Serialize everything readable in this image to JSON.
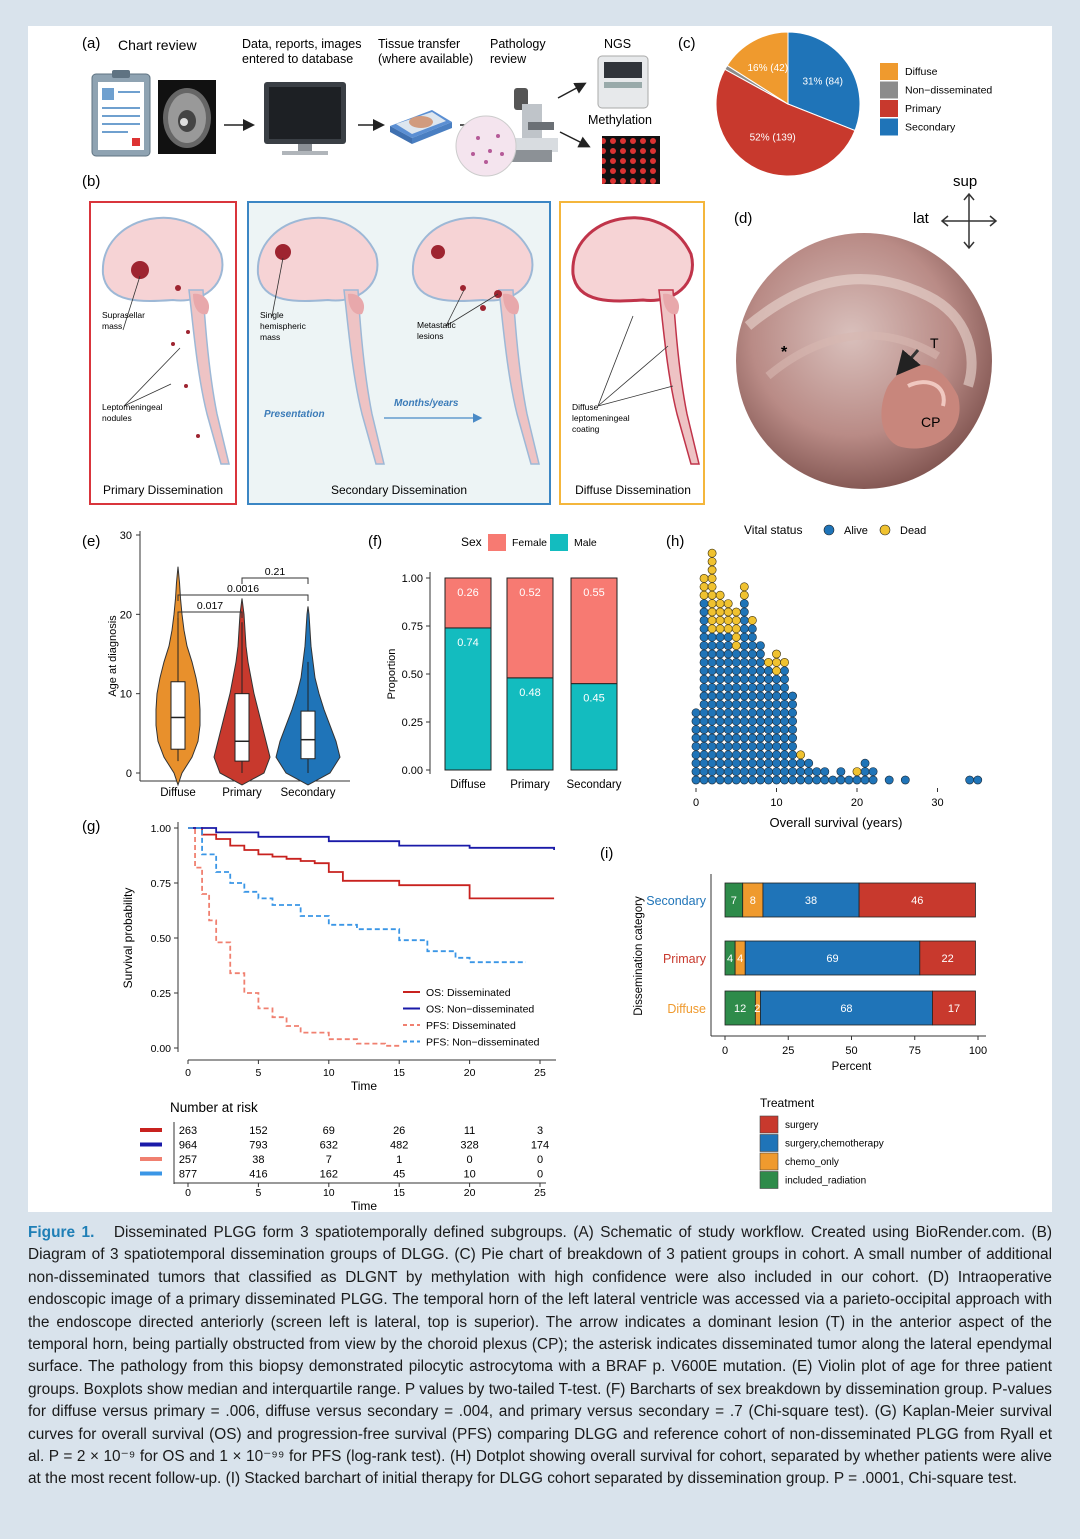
{
  "panel_a": {
    "label": "(a)",
    "steps": [
      "Chart review",
      "Data, reports, images\nentered to database",
      "Tissue transfer\n(where available)",
      "Pathology\nreview",
      "NGS",
      "Methylation"
    ]
  },
  "panel_b": {
    "label": "(b)",
    "boxes": [
      {
        "title": "Primary Dissemination",
        "color": "#d9353c",
        "labels": [
          "Suprasellar\nmass",
          "Leptomeningeal\nnodules"
        ]
      },
      {
        "title": "Secondary Dissemination",
        "color": "#3b86c4",
        "labels": [
          "Single\nhemispheric\nmass",
          "Metastatic\nlesions",
          "Presentation",
          "Months/years"
        ]
      },
      {
        "title": "Diffuse Dissemination",
        "color": "#f4b63c",
        "labels": [
          "Diffuse\nleptomeningeal\ncoating"
        ]
      }
    ]
  },
  "panel_d": {
    "label": "(d)",
    "orient_up": "sup",
    "orient_side": "lat",
    "marks": [
      "*",
      "T",
      "CP"
    ]
  },
  "chart_data": [
    {
      "id": "c",
      "type": "pie",
      "title": "",
      "categories": [
        "Diffuse",
        "Non-disseminated",
        "Primary",
        "Secondary"
      ],
      "percent": [
        16,
        1,
        52,
        31
      ],
      "counts": [
        42,
        3,
        139,
        84
      ],
      "slice_labels": [
        "16% (42)",
        "",
        "52% (139)",
        "31% (84)"
      ],
      "colors": [
        "#ef9a2e",
        "#8c8c8c",
        "#c8392d",
        "#1f74b8"
      ],
      "legend_labels": [
        "Diffuse",
        "Non−disseminated",
        "Primary",
        "Secondary"
      ],
      "legend": "right"
    },
    {
      "id": "e",
      "type": "violin",
      "categories": [
        "Diffuse",
        "Primary",
        "Secondary"
      ],
      "ylabel": "Age at diagnosis",
      "ylim": [
        0,
        30
      ],
      "yticks": [
        "0",
        "10",
        "20",
        "30"
      ],
      "medians": [
        7,
        4,
        4.2
      ],
      "q1": [
        3,
        1.5,
        1.8
      ],
      "q3": [
        11.5,
        10,
        7.8
      ],
      "whisker_low": [
        1.5,
        0,
        0
      ],
      "whisker_high": [
        20,
        19,
        14
      ],
      "colors": [
        "#e8902c",
        "#c8392d",
        "#1f74b8"
      ],
      "pvalues": [
        {
          "pair": [
            "Diffuse",
            "Primary"
          ],
          "label": "0.017"
        },
        {
          "pair": [
            "Diffuse",
            "Secondary"
          ],
          "label": "0.0016"
        },
        {
          "pair": [
            "Primary",
            "Secondary"
          ],
          "label": "0.21"
        }
      ]
    },
    {
      "id": "f",
      "type": "bar",
      "stacked": true,
      "categories": [
        "Diffuse",
        "Primary",
        "Secondary"
      ],
      "ylabel": "Proportion",
      "ylim": [
        0,
        1
      ],
      "yticks": [
        "0.00",
        "0.25",
        "0.50",
        "0.75",
        "1.00"
      ],
      "legend_title": "Sex",
      "legend": "top",
      "series": [
        {
          "name": "Male",
          "values": [
            0.74,
            0.48,
            0.45
          ],
          "labels": [
            "0.74",
            "0.48",
            "0.45"
          ],
          "color": "#13bcbf"
        },
        {
          "name": "Female",
          "values": [
            0.26,
            0.52,
            0.55
          ],
          "labels": [
            "0.26",
            "0.52",
            "0.55"
          ],
          "color": "#f77a72"
        }
      ]
    },
    {
      "id": "h",
      "type": "scatter",
      "subtype": "dotplot",
      "xlabel": "Overall survival (years)",
      "xlim": [
        -1,
        35.5
      ],
      "xticks": [
        "0",
        "10",
        "20",
        "30"
      ],
      "legend_title": "Vital status",
      "legend": "top",
      "series": [
        {
          "name": "Alive",
          "color": "#1f74b8",
          "x": [
            0,
            1,
            2,
            3,
            4,
            5,
            6,
            7,
            8,
            9,
            10,
            11,
            12,
            13,
            14,
            15,
            16,
            17,
            18,
            19,
            20,
            21,
            22,
            24,
            26,
            34,
            35
          ],
          "counts": [
            9,
            22,
            18,
            18,
            18,
            16,
            22,
            19,
            17,
            14,
            13,
            14,
            11,
            3,
            3,
            2,
            2,
            1,
            2,
            1,
            1,
            3,
            2,
            1,
            1,
            1,
            1
          ]
        },
        {
          "name": "Dead",
          "color": "#f0c230",
          "x": [
            0,
            1,
            2,
            3,
            4,
            5,
            6,
            7,
            8,
            9,
            10,
            11,
            13,
            14,
            20
          ],
          "counts": [
            0,
            3,
            10,
            5,
            4,
            5,
            2,
            1,
            0,
            1,
            3,
            1,
            1,
            0,
            1
          ]
        }
      ]
    },
    {
      "id": "g",
      "type": "line",
      "subtype": "kaplan-meier",
      "xlabel": "Time",
      "ylabel": "Survival probability",
      "xlim": [
        0,
        26
      ],
      "ylim": [
        0,
        1
      ],
      "xticks": [
        "0",
        "5",
        "10",
        "15",
        "20",
        "25"
      ],
      "yticks": [
        "0.00",
        "0.25",
        "0.50",
        "0.75",
        "1.00"
      ],
      "legend": "bottom-right",
      "series": [
        {
          "name": "OS: Disseminated",
          "color": "#c8221f",
          "dash": false,
          "x": [
            0,
            1,
            2,
            3,
            4,
            5,
            6,
            7,
            8,
            9,
            10,
            11,
            12,
            14,
            15,
            19,
            20,
            26
          ],
          "y": [
            1,
            0.97,
            0.95,
            0.92,
            0.9,
            0.88,
            0.87,
            0.86,
            0.85,
            0.84,
            0.8,
            0.76,
            0.76,
            0.76,
            0.74,
            0.74,
            0.68,
            0.68
          ]
        },
        {
          "name": "OS: Non−disseminated",
          "color": "#1a1aa8",
          "dash": false,
          "x": [
            0,
            2,
            5,
            10,
            15,
            20,
            26
          ],
          "y": [
            1,
            0.98,
            0.96,
            0.94,
            0.92,
            0.91,
            0.9
          ]
        },
        {
          "name": "PFS: Disseminated",
          "color": "#f08070",
          "dash": true,
          "x": [
            0,
            0.5,
            1,
            1.5,
            2,
            3,
            4,
            5,
            6,
            7,
            8,
            10,
            12,
            14,
            15
          ],
          "y": [
            1,
            0.82,
            0.7,
            0.58,
            0.48,
            0.34,
            0.25,
            0.18,
            0.14,
            0.1,
            0.07,
            0.04,
            0.02,
            0.01,
            0.01
          ]
        },
        {
          "name": "PFS: Non−disseminated",
          "color": "#3a96e6",
          "dash": true,
          "x": [
            0,
            1,
            2,
            3,
            4,
            5,
            6,
            8,
            10,
            12,
            15,
            17,
            19,
            20,
            24
          ],
          "y": [
            1,
            0.88,
            0.8,
            0.75,
            0.71,
            0.68,
            0.65,
            0.6,
            0.56,
            0.54,
            0.49,
            0.44,
            0.41,
            0.39,
            0.39
          ]
        }
      ]
    },
    {
      "id": "g-risk",
      "type": "table",
      "title": "Number at risk",
      "columns": [
        "0",
        "5",
        "10",
        "15",
        "20",
        "25"
      ],
      "xlabel": "Time",
      "rows": [
        {
          "color": "#c8221f",
          "values": [
            "263",
            "152",
            "69",
            "26",
            "11",
            "3"
          ]
        },
        {
          "color": "#1a1aa8",
          "values": [
            "964",
            "793",
            "632",
            "482",
            "328",
            "174"
          ]
        },
        {
          "color": "#f08070",
          "values": [
            "257",
            "38",
            "7",
            "1",
            "0",
            "0"
          ]
        },
        {
          "color": "#3a96e6",
          "values": [
            "877",
            "416",
            "162",
            "45",
            "10",
            "0"
          ]
        }
      ]
    },
    {
      "id": "i",
      "type": "bar",
      "stacked": true,
      "orientation": "horizontal",
      "categories": [
        "Secondary",
        "Primary",
        "Diffuse"
      ],
      "category_colors": [
        "#1f74b8",
        "#c8392d",
        "#ef9a2e"
      ],
      "xlabel": "Percent",
      "ylabel": "Dissemination category",
      "xlim": [
        0,
        100
      ],
      "xticks": [
        "0",
        "25",
        "50",
        "75",
        "100"
      ],
      "legend_title": "Treatment",
      "legend": "bottom",
      "series": [
        {
          "name": "included_radiation",
          "color": "#2e8b4a",
          "values": [
            7,
            4,
            12
          ],
          "labels": [
            "7",
            "4",
            "12"
          ]
        },
        {
          "name": "chemo_only",
          "color": "#ef9a2e",
          "values": [
            8,
            4,
            2
          ],
          "labels": [
            "8",
            "4",
            "2"
          ]
        },
        {
          "name": "surgery,chemotherapy",
          "color": "#1f74b8",
          "values": [
            38,
            69,
            68
          ],
          "labels": [
            "38",
            "69",
            "68"
          ]
        },
        {
          "name": "surgery",
          "color": "#c8392d",
          "values": [
            46,
            22,
            17
          ],
          "labels": [
            "46",
            "22",
            "17"
          ]
        }
      ],
      "legend_order": [
        "surgery",
        "surgery,chemotherapy",
        "chemo_only",
        "included_radiation"
      ]
    }
  ],
  "labels": {
    "c": "(c)",
    "e": "(e)",
    "f": "(f)",
    "g": "(g)",
    "h": "(h)",
    "i": "(i)"
  },
  "caption": {
    "figure_label": "Figure 1.",
    "text": "Disseminated PLGG form 3 spatiotemporally defined subgroups. (A) Schematic of study workflow. Created using BioRender.com. (B) Diagram of 3 spatiotemporal dissemination groups of DLGG. (C) Pie chart of breakdown of 3 patient groups in cohort. A small number of additional non-disseminated tumors that classified as DLGNT by methylation with high confidence were also included in our cohort. (D) Intraoperative endoscopic image of a primary disseminated PLGG. The temporal horn of the left lateral ventricle was accessed via a parieto-occipital approach with the endoscope directed anteriorly (screen left is lateral, top is superior). The arrow indicates a dominant lesion (T) in the anterior aspect of the temporal horn, being partially obstructed from view by the choroid plexus (CP); the asterisk indicates disseminated tumor along the lateral ependymal surface. The pathology from this biopsy demonstrated pilocytic astrocytoma with a BRAF p. V600E mutation. (E) Violin plot of age for three patient groups. Boxplots show median and interquartile range. P values by two-tailed T-test. (F) Barcharts of sex breakdown by dissemination group. P-values for diffuse versus primary = .006, diffuse versus secondary = .004, and primary versus secondary = .7 (Chi-square test). (G) Kaplan-Meier survival curves for overall survival (OS) and progression-free survival (PFS) comparing DLGG and reference cohort of non-disseminated PLGG from Ryall et al. P = 2 × 10⁻⁹ for OS and 1 × 10⁻⁹⁹ for PFS (log-rank test). (H) Dotplot showing overall survival for cohort, separated by whether patients were alive at the most recent follow-up. (I) Stacked barchart of initial therapy for DLGG cohort separated by dissemination group. P = .0001, Chi-square test."
  }
}
